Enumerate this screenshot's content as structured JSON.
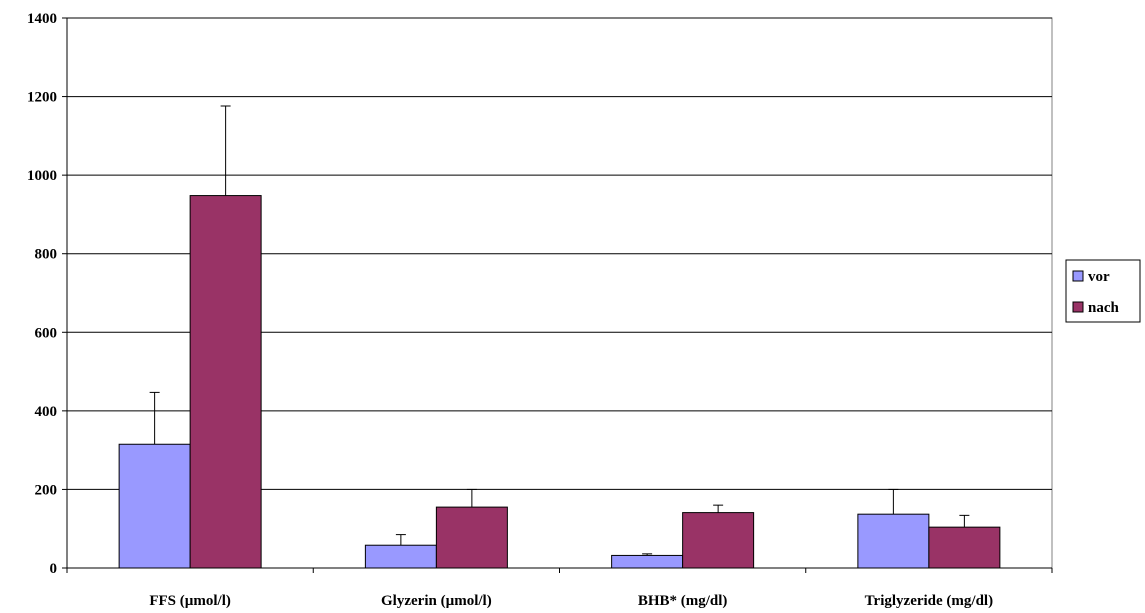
{
  "chart_data": {
    "type": "bar",
    "title": "",
    "xlabel": "",
    "ylabel": "",
    "categories": [
      "FFS (µmol/l)",
      "Glyzerin (µmol/l)",
      "BHB* (mg/dl)",
      "Triglyzeride (mg/dl)"
    ],
    "series": [
      {
        "name": "vor",
        "color": "#9999ff",
        "values": [
          315,
          58,
          32,
          137
        ],
        "errors": [
          132,
          27,
          4,
          63
        ]
      },
      {
        "name": "nach",
        "color": "#993366",
        "values": [
          948,
          155,
          141,
          104
        ],
        "errors": [
          228,
          45,
          19,
          30
        ]
      }
    ],
    "ylim": [
      0,
      1400
    ],
    "yticks": [
      0,
      200,
      400,
      600,
      800,
      1000,
      1200,
      1400
    ],
    "grid": true,
    "error_bars": "upper",
    "legend": "right"
  }
}
